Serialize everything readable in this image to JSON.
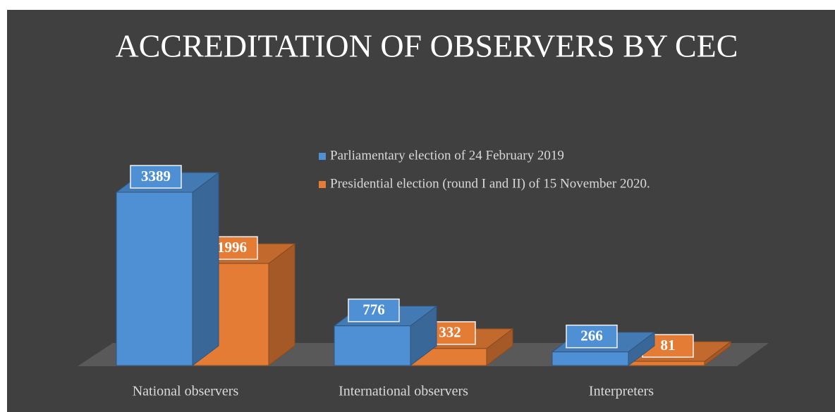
{
  "chart_data": {
    "type": "bar3d",
    "title": "ACCREDITATION OF OBSERVERS BY CEC",
    "categories": [
      "National observers",
      "International observers",
      "Interpreters"
    ],
    "series": [
      {
        "name": "Parliamentary election of 24 February 2019",
        "color": "#4f8fd3",
        "values": [
          3389,
          776,
          266
        ]
      },
      {
        "name": "Presidential election (round I and II) of 15 November 2020.",
        "color": "#e47c36",
        "values": [
          1996,
          332,
          81
        ]
      }
    ],
    "legend": "upper right"
  }
}
